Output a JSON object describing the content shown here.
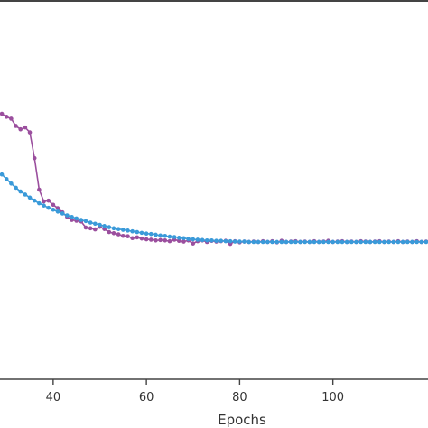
{
  "chart_data": {
    "type": "line",
    "title": "",
    "xlabel": "Epochs",
    "ylabel": "",
    "xlim": [
      28.6,
      120.4
    ],
    "ylim": [
      0,
      1
    ],
    "x_ticks": [
      40,
      60,
      80,
      100
    ],
    "x_tick_labels": [
      "40",
      "60",
      "80",
      "100"
    ],
    "grid": false,
    "legend": "none",
    "series": [
      {
        "color": "#9b4f9e",
        "marker": "circle",
        "x": [
          29,
          30,
          31,
          32,
          33,
          34,
          35,
          36,
          37,
          38,
          39,
          40,
          41,
          42,
          43,
          44,
          45,
          46,
          47,
          48,
          49,
          50,
          51,
          52,
          53,
          54,
          55,
          56,
          57,
          58,
          59,
          60,
          61,
          62,
          63,
          64,
          65,
          66,
          67,
          68,
          69,
          70,
          71,
          72,
          73,
          74,
          75,
          76,
          77,
          78,
          79,
          80,
          81,
          82,
          83,
          84,
          85,
          86,
          87,
          88,
          89,
          90,
          91,
          92,
          93,
          94,
          95,
          96,
          97,
          98,
          99,
          100,
          101,
          102,
          103,
          104,
          105,
          106,
          107,
          108,
          109,
          110,
          111,
          112,
          113,
          114,
          115,
          116,
          117,
          118,
          119,
          120
        ],
        "values": [
          0.7,
          0.692,
          0.687,
          0.668,
          0.659,
          0.664,
          0.651,
          0.583,
          0.5,
          0.469,
          0.471,
          0.46,
          0.451,
          0.44,
          0.428,
          0.42,
          0.418,
          0.416,
          0.4,
          0.398,
          0.395,
          0.402,
          0.396,
          0.388,
          0.385,
          0.382,
          0.378,
          0.377,
          0.372,
          0.374,
          0.371,
          0.369,
          0.368,
          0.366,
          0.367,
          0.366,
          0.364,
          0.368,
          0.365,
          0.363,
          0.366,
          0.358,
          0.364,
          0.366,
          0.362,
          0.365,
          0.363,
          0.364,
          0.365,
          0.357,
          0.364,
          0.361,
          0.363,
          0.362,
          0.363,
          0.362,
          0.364,
          0.362,
          0.364,
          0.361,
          0.365,
          0.362,
          0.363,
          0.364,
          0.362,
          0.363,
          0.362,
          0.364,
          0.362,
          0.363,
          0.365,
          0.362,
          0.363,
          0.364,
          0.362,
          0.363,
          0.362,
          0.364,
          0.363,
          0.362,
          0.363,
          0.364,
          0.362,
          0.363,
          0.362,
          0.364,
          0.362,
          0.363,
          0.362,
          0.364,
          0.362,
          0.363
        ]
      },
      {
        "color": "#3a9ad9",
        "marker": "circle",
        "x": [
          29,
          30,
          31,
          32,
          33,
          34,
          35,
          36,
          37,
          38,
          39,
          40,
          41,
          42,
          43,
          44,
          45,
          46,
          47,
          48,
          49,
          50,
          51,
          52,
          53,
          54,
          55,
          56,
          57,
          58,
          59,
          60,
          61,
          62,
          63,
          64,
          65,
          66,
          67,
          68,
          69,
          70,
          71,
          72,
          73,
          74,
          75,
          76,
          77,
          78,
          79,
          80,
          81,
          82,
          83,
          84,
          85,
          86,
          87,
          88,
          89,
          90,
          91,
          92,
          93,
          94,
          95,
          96,
          97,
          98,
          99,
          100,
          101,
          102,
          103,
          104,
          105,
          106,
          107,
          108,
          109,
          110,
          111,
          112,
          113,
          114,
          115,
          116,
          117,
          118,
          119,
          120
        ],
        "values": [
          0.54,
          0.528,
          0.516,
          0.505,
          0.495,
          0.487,
          0.479,
          0.471,
          0.464,
          0.458,
          0.452,
          0.447,
          0.442,
          0.437,
          0.432,
          0.428,
          0.424,
          0.42,
          0.417,
          0.413,
          0.41,
          0.407,
          0.404,
          0.401,
          0.398,
          0.396,
          0.394,
          0.392,
          0.39,
          0.388,
          0.386,
          0.384,
          0.383,
          0.381,
          0.379,
          0.378,
          0.376,
          0.375,
          0.373,
          0.372,
          0.37,
          0.369,
          0.368,
          0.367,
          0.366,
          0.366,
          0.365,
          0.365,
          0.364,
          0.364,
          0.363,
          0.363,
          0.363,
          0.362,
          0.362,
          0.362,
          0.362,
          0.362,
          0.362,
          0.362,
          0.362,
          0.362,
          0.362,
          0.362,
          0.362,
          0.362,
          0.362,
          0.362,
          0.362,
          0.362,
          0.362,
          0.362,
          0.362,
          0.362,
          0.362,
          0.362,
          0.362,
          0.362,
          0.362,
          0.362,
          0.362,
          0.362,
          0.362,
          0.362,
          0.362,
          0.362,
          0.362,
          0.362,
          0.362,
          0.362,
          0.362,
          0.362
        ]
      }
    ]
  }
}
